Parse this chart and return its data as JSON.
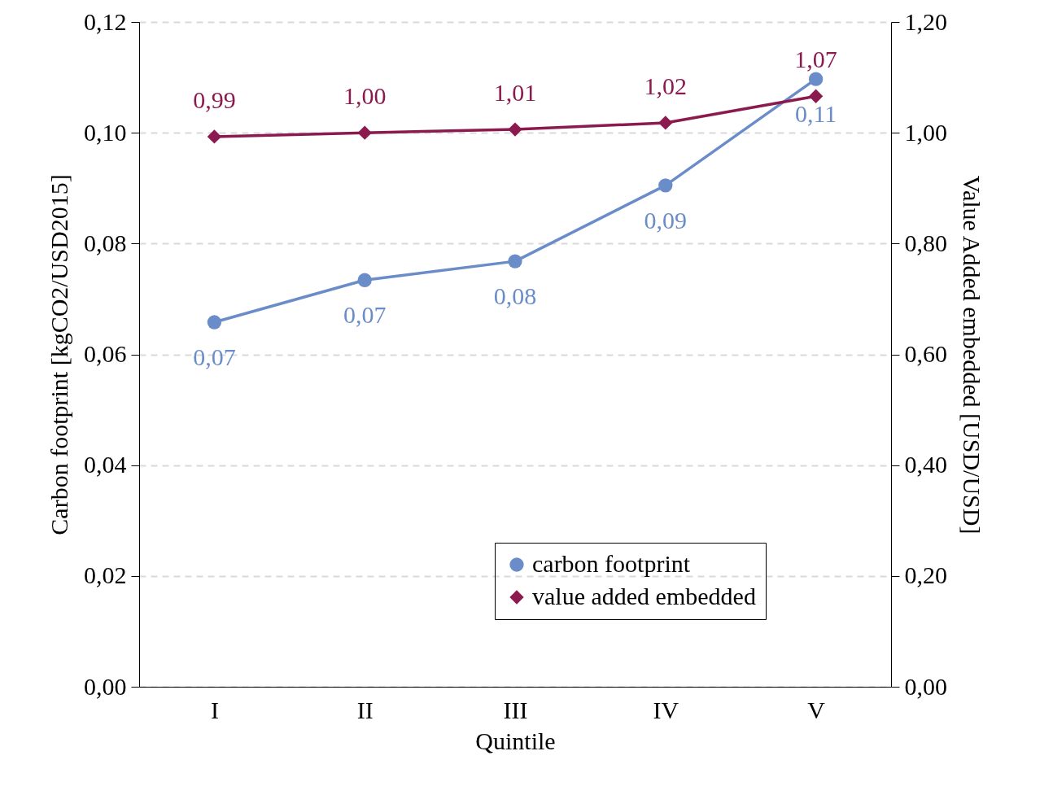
{
  "chart_data": {
    "type": "line",
    "xlabel": "Quintile",
    "ylabel": "Carbon footprint [kgCO2/USD2015]",
    "y2label": "Value Added embedded [USD/USD]",
    "categories": [
      "I",
      "II",
      "III",
      "IV",
      "V"
    ],
    "series": [
      {
        "name": "carbon footprint",
        "color": "#6a8cc8",
        "marker": "circle",
        "values": [
          0.0658,
          0.0734,
          0.0768,
          0.0905,
          0.1097
        ],
        "value_labels": [
          "0,07",
          "0,07",
          "0,08",
          "0,09",
          "0,11"
        ]
      },
      {
        "name": "value added embedded",
        "color": "#8b1a4f",
        "marker": "diamond",
        "axis": "y2",
        "values": [
          0.993,
          1.0,
          1.006,
          1.018,
          1.066
        ],
        "value_labels": [
          "0,99",
          "1,00",
          "1,01",
          "1,02",
          "1,07"
        ]
      }
    ],
    "ylim": [
      0,
      0.12
    ],
    "yticks": [
      {
        "value": 0,
        "label": "0,00"
      },
      {
        "value": 0.02,
        "label": "0,02"
      },
      {
        "value": 0.04,
        "label": "0,04"
      },
      {
        "value": 0.06,
        "label": "0,06"
      },
      {
        "value": 0.08,
        "label": "0,08"
      },
      {
        "value": 0.1,
        "label": "0,10"
      },
      {
        "value": 0.12,
        "label": "0,12"
      }
    ],
    "y2lim": [
      0,
      1.2
    ],
    "y2ticks": [
      {
        "value": 0,
        "label": "0,00"
      },
      {
        "value": 0.2,
        "label": "0,20"
      },
      {
        "value": 0.4,
        "label": "0,40"
      },
      {
        "value": 0.6,
        "label": "0,60"
      },
      {
        "value": 0.8,
        "label": "0,80"
      },
      {
        "value": 1.0,
        "label": "1,00"
      },
      {
        "value": 1.2,
        "label": "1,20"
      }
    ],
    "grid": "y",
    "legend": "bottom right",
    "line_style": "solid"
  }
}
